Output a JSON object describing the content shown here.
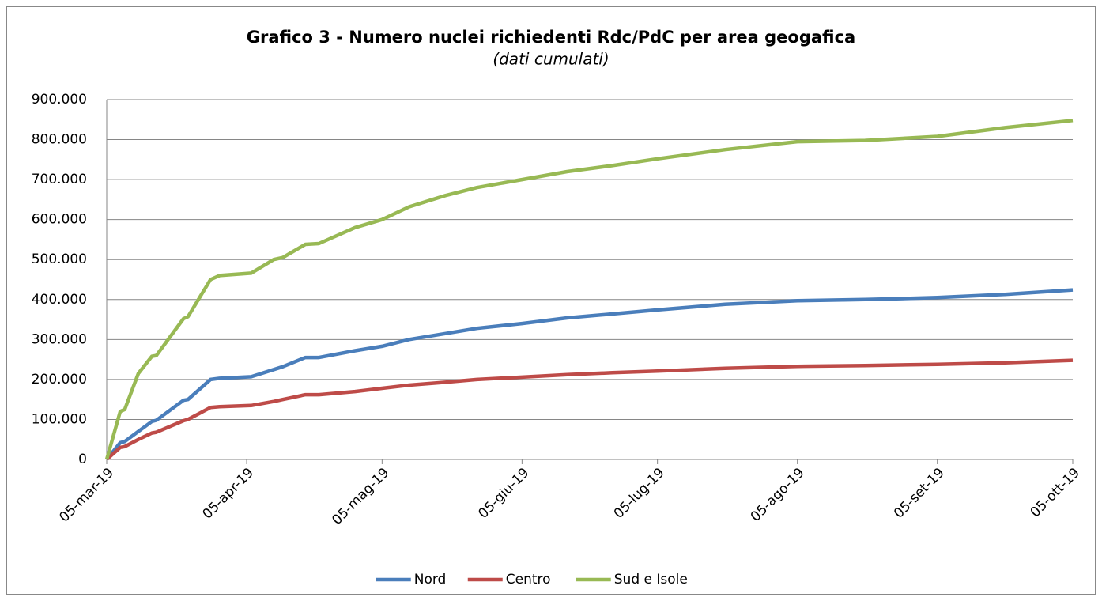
{
  "chart_data": {
    "type": "line",
    "title": "Grafico 3 - Numero nuclei richiedenti Rdc/PdC per area geogafica",
    "subtitle": "(dati cumulati)",
    "x": [
      "2019-03-05",
      "2019-03-08",
      "2019-03-09",
      "2019-03-12",
      "2019-03-15",
      "2019-03-16",
      "2019-03-22",
      "2019-03-23",
      "2019-03-28",
      "2019-03-30",
      "2019-04-06",
      "2019-04-11",
      "2019-04-13",
      "2019-04-18",
      "2019-04-21",
      "2019-04-29",
      "2019-05-05",
      "2019-05-11",
      "2019-05-19",
      "2019-05-26",
      "2019-06-05",
      "2019-06-15",
      "2019-06-25",
      "2019-07-05",
      "2019-07-20",
      "2019-08-05",
      "2019-08-20",
      "2019-09-05",
      "2019-09-20",
      "2019-10-05"
    ],
    "series": [
      {
        "name": "Nord",
        "color": "#4a7ebb",
        "values": [
          0,
          42000,
          45000,
          70000,
          95000,
          98000,
          148000,
          150000,
          200000,
          203000,
          207000,
          225000,
          232000,
          255000,
          255000,
          272000,
          283000,
          300000,
          315000,
          328000,
          340000,
          354000,
          364000,
          374000,
          388000,
          397000,
          400000,
          405000,
          413000,
          424000
        ]
      },
      {
        "name": "Centro",
        "color": "#be4b48",
        "values": [
          0,
          30000,
          32000,
          50000,
          66000,
          68000,
          97000,
          100000,
          130000,
          132000,
          135000,
          145000,
          150000,
          162000,
          162000,
          170000,
          178000,
          186000,
          193000,
          200000,
          206000,
          212000,
          217000,
          221000,
          228000,
          233000,
          235000,
          238000,
          242000,
          248000
        ]
      },
      {
        "name": "Sud e Isole",
        "color": "#98b954",
        "values": [
          0,
          120000,
          125000,
          215000,
          258000,
          260000,
          352000,
          357000,
          450000,
          460000,
          466000,
          500000,
          505000,
          538000,
          540000,
          580000,
          600000,
          632000,
          660000,
          680000,
          700000,
          720000,
          735000,
          752000,
          775000,
          795000,
          798000,
          808000,
          830000,
          848000
        ]
      }
    ],
    "xlim": [
      "2019-03-05",
      "2019-10-05"
    ],
    "xticks": [
      {
        "value": "2019-03-05",
        "label": "05-mar-19"
      },
      {
        "value": "2019-04-05",
        "label": "05-apr-19"
      },
      {
        "value": "2019-05-05",
        "label": "05-mag-19"
      },
      {
        "value": "2019-06-05",
        "label": "05-giu-19"
      },
      {
        "value": "2019-07-05",
        "label": "05-lug-19"
      },
      {
        "value": "2019-08-05",
        "label": "05-ago-19"
      },
      {
        "value": "2019-09-05",
        "label": "05-set-19"
      },
      {
        "value": "2019-10-05",
        "label": "05-ott-19"
      }
    ],
    "ylim": [
      0,
      900000
    ],
    "yticks": [
      0,
      {
        "value": 100000,
        "label": "100.000"
      },
      {
        "value": 200000,
        "label": "200.000"
      },
      {
        "value": 300000,
        "label": "300.000"
      },
      {
        "value": 400000,
        "label": "400.000"
      },
      {
        "value": 500000,
        "label": "500.000"
      },
      {
        "value": 600000,
        "label": "600.000"
      },
      {
        "value": 700000,
        "label": "700.000"
      },
      {
        "value": 800000,
        "label": "800.000"
      },
      {
        "value": 900000,
        "label": "900.000"
      }
    ],
    "grid": true,
    "legend": "bottom"
  }
}
